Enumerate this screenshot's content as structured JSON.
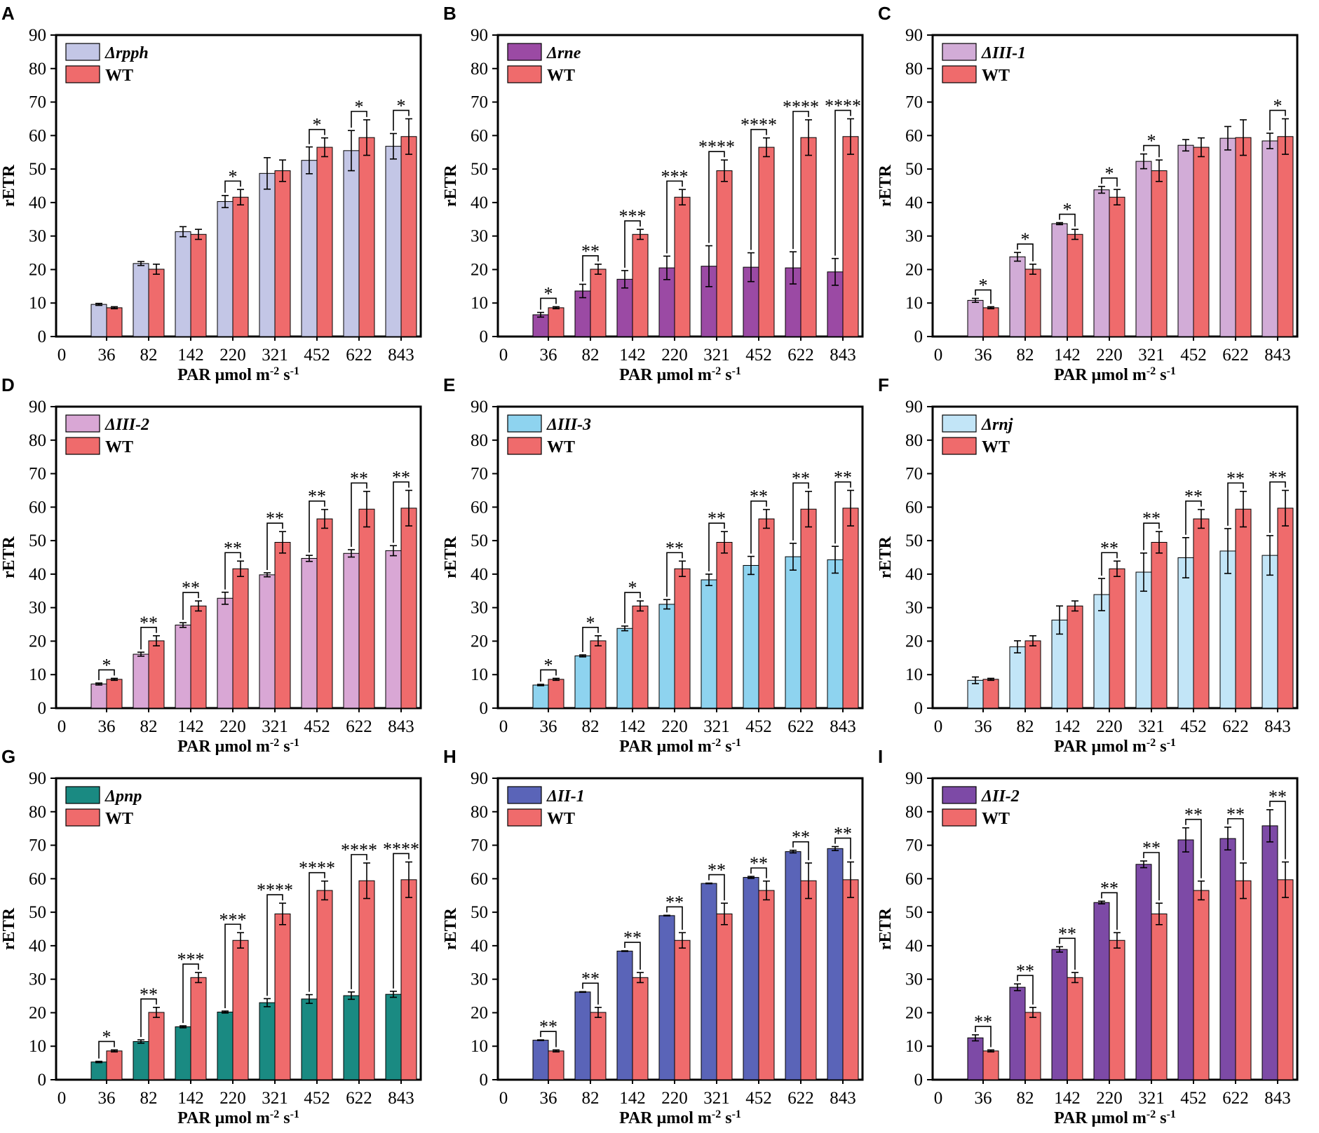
{
  "chart_data": [
    {
      "type": "bar",
      "panel": "A",
      "xlabel": "PAR",
      "ylabel": "rETR",
      "ylim": [
        0,
        90
      ],
      "categories": [
        "36",
        "82",
        "142",
        "220",
        "321",
        "452",
        "622",
        "843"
      ],
      "x_origin_label": "0",
      "series": [
        {
          "name": "Δrpph",
          "color": "#c3c6e6",
          "values": [
            9.6,
            21.8,
            31.3,
            40.3,
            48.7,
            52.6,
            55.5,
            56.8
          ],
          "errors": [
            0.3,
            0.6,
            1.5,
            1.8,
            4.7,
            4.0,
            6.0,
            3.8
          ]
        },
        {
          "name": "WT",
          "color": "#ef6b6c",
          "values": [
            8.6,
            20.1,
            30.5,
            41.6,
            49.5,
            56.5,
            59.4,
            59.7
          ],
          "errors": [
            0.3,
            1.5,
            1.5,
            2.3,
            3.2,
            2.8,
            5.3,
            5.3
          ]
        }
      ],
      "significance": [
        {
          "category": "220",
          "label": "*"
        },
        {
          "category": "452",
          "label": "*"
        },
        {
          "category": "622",
          "label": "*"
        },
        {
          "category": "843",
          "label": "*"
        }
      ]
    },
    {
      "type": "bar",
      "panel": "B",
      "xlabel": "PAR",
      "ylabel": "rETR",
      "ylim": [
        0,
        90
      ],
      "categories": [
        "36",
        "82",
        "142",
        "220",
        "321",
        "452",
        "622",
        "843"
      ],
      "x_origin_label": "0",
      "series": [
        {
          "name": "Δrne",
          "color": "#9b4aa4",
          "values": [
            6.5,
            13.6,
            17.1,
            20.5,
            21.0,
            20.7,
            20.5,
            19.3
          ],
          "errors": [
            0.7,
            2.0,
            2.6,
            3.5,
            6.1,
            4.3,
            4.8,
            4.0
          ]
        },
        {
          "name": "WT",
          "color": "#ef6b6c",
          "values": [
            8.6,
            20.1,
            30.5,
            41.6,
            49.5,
            56.5,
            59.4,
            59.7
          ],
          "errors": [
            0.3,
            1.5,
            1.5,
            2.3,
            3.2,
            2.8,
            5.3,
            5.3
          ]
        }
      ],
      "significance": [
        {
          "category": "36",
          "label": "*"
        },
        {
          "category": "82",
          "label": "**"
        },
        {
          "category": "142",
          "label": "***"
        },
        {
          "category": "220",
          "label": "***"
        },
        {
          "category": "321",
          "label": "****"
        },
        {
          "category": "452",
          "label": "****"
        },
        {
          "category": "622",
          "label": "****"
        },
        {
          "category": "843",
          "label": "****"
        }
      ]
    },
    {
      "type": "bar",
      "panel": "C",
      "xlabel": "PAR",
      "ylabel": "rETR",
      "ylim": [
        0,
        90
      ],
      "categories": [
        "36",
        "82",
        "142",
        "220",
        "321",
        "452",
        "622",
        "843"
      ],
      "x_origin_label": "0",
      "series": [
        {
          "name": "ΔIII-1",
          "color": "#d2acd7",
          "values": [
            10.8,
            23.8,
            33.7,
            43.8,
            52.3,
            57.1,
            59.2,
            58.4
          ],
          "errors": [
            0.6,
            1.3,
            0.3,
            1.0,
            2.2,
            1.7,
            3.5,
            2.3
          ]
        },
        {
          "name": "WT",
          "color": "#ef6b6c",
          "values": [
            8.6,
            20.1,
            30.5,
            41.6,
            49.5,
            56.5,
            59.4,
            59.7
          ],
          "errors": [
            0.3,
            1.5,
            1.5,
            2.3,
            3.2,
            2.8,
            5.3,
            5.3
          ]
        }
      ],
      "significance": [
        {
          "category": "36",
          "label": "*"
        },
        {
          "category": "82",
          "label": "*"
        },
        {
          "category": "142",
          "label": "*"
        },
        {
          "category": "220",
          "label": "*"
        },
        {
          "category": "321",
          "label": "*"
        },
        {
          "category": "843",
          "label": "*"
        }
      ]
    },
    {
      "type": "bar",
      "panel": "D",
      "xlabel": "PAR",
      "ylabel": "rETR",
      "ylim": [
        0,
        90
      ],
      "categories": [
        "36",
        "82",
        "142",
        "220",
        "321",
        "452",
        "622",
        "843"
      ],
      "x_origin_label": "0",
      "series": [
        {
          "name": "ΔIII-2",
          "color": "#d9a7d5",
          "values": [
            7.2,
            16.1,
            24.8,
            32.8,
            39.8,
            44.7,
            46.2,
            47.0
          ],
          "errors": [
            0.3,
            0.6,
            0.7,
            1.8,
            0.6,
            0.9,
            1.1,
            1.5
          ]
        },
        {
          "name": "WT",
          "color": "#ef6b6c",
          "values": [
            8.6,
            20.1,
            30.5,
            41.6,
            49.5,
            56.5,
            59.4,
            59.7
          ],
          "errors": [
            0.3,
            1.5,
            1.5,
            2.3,
            3.2,
            2.8,
            5.3,
            5.3
          ]
        }
      ],
      "significance": [
        {
          "category": "36",
          "label": "*"
        },
        {
          "category": "82",
          "label": "**"
        },
        {
          "category": "142",
          "label": "**"
        },
        {
          "category": "220",
          "label": "**"
        },
        {
          "category": "321",
          "label": "**"
        },
        {
          "category": "452",
          "label": "**"
        },
        {
          "category": "622",
          "label": "**"
        },
        {
          "category": "843",
          "label": "**"
        }
      ]
    },
    {
      "type": "bar",
      "panel": "E",
      "xlabel": "PAR",
      "ylabel": "rETR",
      "ylim": [
        0,
        90
      ],
      "categories": [
        "36",
        "82",
        "142",
        "220",
        "321",
        "452",
        "622",
        "843"
      ],
      "x_origin_label": "0",
      "series": [
        {
          "name": "ΔIII-3",
          "color": "#8ed3ef",
          "values": [
            6.9,
            15.6,
            23.8,
            31.0,
            38.3,
            42.6,
            45.2,
            44.3
          ],
          "errors": [
            0.2,
            0.3,
            0.7,
            1.4,
            1.7,
            2.7,
            4.0,
            4.0
          ]
        },
        {
          "name": "WT",
          "color": "#ef6b6c",
          "values": [
            8.6,
            20.1,
            30.5,
            41.6,
            49.5,
            56.5,
            59.4,
            59.7
          ],
          "errors": [
            0.3,
            1.5,
            1.5,
            2.3,
            3.2,
            2.8,
            5.3,
            5.3
          ]
        }
      ],
      "significance": [
        {
          "category": "36",
          "label": "*"
        },
        {
          "category": "82",
          "label": "*"
        },
        {
          "category": "142",
          "label": "*"
        },
        {
          "category": "220",
          "label": "**"
        },
        {
          "category": "321",
          "label": "**"
        },
        {
          "category": "452",
          "label": "**"
        },
        {
          "category": "622",
          "label": "**"
        },
        {
          "category": "843",
          "label": "**"
        }
      ]
    },
    {
      "type": "bar",
      "panel": "F",
      "xlabel": "PAR",
      "ylabel": "rETR",
      "ylim": [
        0,
        90
      ],
      "categories": [
        "36",
        "82",
        "142",
        "220",
        "321",
        "452",
        "622",
        "843"
      ],
      "x_origin_label": "0",
      "series": [
        {
          "name": "Δrnj",
          "color": "#c2e5f7",
          "values": [
            8.3,
            18.3,
            26.3,
            33.9,
            40.6,
            44.9,
            46.9,
            45.6
          ],
          "errors": [
            1.0,
            1.8,
            4.2,
            4.8,
            5.7,
            6.0,
            6.7,
            5.9
          ]
        },
        {
          "name": "WT",
          "color": "#ef6b6c",
          "values": [
            8.6,
            20.1,
            30.5,
            41.6,
            49.5,
            56.5,
            59.4,
            59.7
          ],
          "errors": [
            0.3,
            1.5,
            1.5,
            2.3,
            3.2,
            2.8,
            5.3,
            5.3
          ]
        }
      ],
      "significance": [
        {
          "category": "220",
          "label": "**"
        },
        {
          "category": "321",
          "label": "**"
        },
        {
          "category": "452",
          "label": "**"
        },
        {
          "category": "622",
          "label": "**"
        },
        {
          "category": "843",
          "label": "**"
        }
      ]
    },
    {
      "type": "bar",
      "panel": "G",
      "xlabel": "PAR",
      "ylabel": "rETR",
      "ylim": [
        0,
        90
      ],
      "categories": [
        "36",
        "82",
        "142",
        "220",
        "321",
        "452",
        "622",
        "843"
      ],
      "x_origin_label": "0",
      "series": [
        {
          "name": "Δpnp",
          "color": "#1a8a82",
          "values": [
            5.3,
            11.4,
            15.8,
            20.2,
            23.0,
            24.1,
            25.1,
            25.5
          ],
          "errors": [
            0.2,
            0.5,
            0.3,
            0.3,
            1.2,
            1.3,
            1.1,
            0.9
          ]
        },
        {
          "name": "WT",
          "color": "#ef6b6c",
          "values": [
            8.6,
            20.1,
            30.5,
            41.6,
            49.5,
            56.5,
            59.4,
            59.7
          ],
          "errors": [
            0.3,
            1.5,
            1.5,
            2.3,
            3.2,
            2.8,
            5.3,
            5.3
          ]
        }
      ],
      "significance": [
        {
          "category": "36",
          "label": "*"
        },
        {
          "category": "82",
          "label": "**"
        },
        {
          "category": "142",
          "label": "***"
        },
        {
          "category": "220",
          "label": "***"
        },
        {
          "category": "321",
          "label": "****"
        },
        {
          "category": "452",
          "label": "****"
        },
        {
          "category": "622",
          "label": "****"
        },
        {
          "category": "843",
          "label": "****"
        }
      ]
    },
    {
      "type": "bar",
      "panel": "H",
      "xlabel": "PAR",
      "ylabel": "rETR",
      "ylim": [
        0,
        90
      ],
      "categories": [
        "36",
        "82",
        "142",
        "220",
        "321",
        "452",
        "622",
        "843"
      ],
      "x_origin_label": "0",
      "series": [
        {
          "name": "ΔII-1",
          "color": "#5a64b8",
          "values": [
            11.8,
            26.2,
            38.4,
            49.0,
            58.6,
            60.4,
            68.1,
            69.0
          ],
          "errors": [
            0.1,
            0.1,
            0.1,
            0.1,
            0.1,
            0.3,
            0.4,
            0.6
          ]
        },
        {
          "name": "WT",
          "color": "#ef6b6c",
          "values": [
            8.6,
            20.1,
            30.5,
            41.6,
            49.5,
            56.5,
            59.4,
            59.7
          ],
          "errors": [
            0.3,
            1.5,
            1.5,
            2.3,
            3.2,
            2.8,
            5.3,
            5.3
          ]
        }
      ],
      "significance": [
        {
          "category": "36",
          "label": "**"
        },
        {
          "category": "82",
          "label": "**"
        },
        {
          "category": "142",
          "label": "**"
        },
        {
          "category": "220",
          "label": "**"
        },
        {
          "category": "321",
          "label": "**"
        },
        {
          "category": "452",
          "label": "**"
        },
        {
          "category": "622",
          "label": "**"
        },
        {
          "category": "843",
          "label": "**"
        }
      ]
    },
    {
      "type": "bar",
      "panel": "I",
      "xlabel": "PAR",
      "ylabel": "rETR",
      "ylim": [
        0,
        90
      ],
      "categories": [
        "36",
        "82",
        "142",
        "220",
        "321",
        "452",
        "622",
        "843"
      ],
      "x_origin_label": "0",
      "series": [
        {
          "name": "ΔII-2",
          "color": "#7d4aa6",
          "values": [
            12.5,
            27.6,
            38.9,
            52.9,
            64.3,
            71.6,
            72.0,
            75.8
          ],
          "errors": [
            0.9,
            1.0,
            0.8,
            0.4,
            1.0,
            3.6,
            3.4,
            4.8
          ]
        },
        {
          "name": "WT",
          "color": "#ef6b6c",
          "values": [
            8.6,
            20.1,
            30.5,
            41.6,
            49.5,
            56.5,
            59.4,
            59.7
          ],
          "errors": [
            0.3,
            1.5,
            1.5,
            2.3,
            3.2,
            2.8,
            5.3,
            5.3
          ]
        }
      ],
      "significance": [
        {
          "category": "36",
          "label": "**"
        },
        {
          "category": "82",
          "label": "**"
        },
        {
          "category": "142",
          "label": "**"
        },
        {
          "category": "220",
          "label": "**"
        },
        {
          "category": "321",
          "label": "**"
        },
        {
          "category": "452",
          "label": "**"
        },
        {
          "category": "622",
          "label": "**"
        },
        {
          "category": "843",
          "label": "**"
        }
      ]
    }
  ],
  "y_ticks": [
    0,
    10,
    20,
    30,
    40,
    50,
    60,
    70,
    80,
    90
  ],
  "xlabel_prefix": "PAR μmol m",
  "xlabel_exp1": "-2",
  "xlabel_mid": " s",
  "xlabel_exp2": "-1"
}
